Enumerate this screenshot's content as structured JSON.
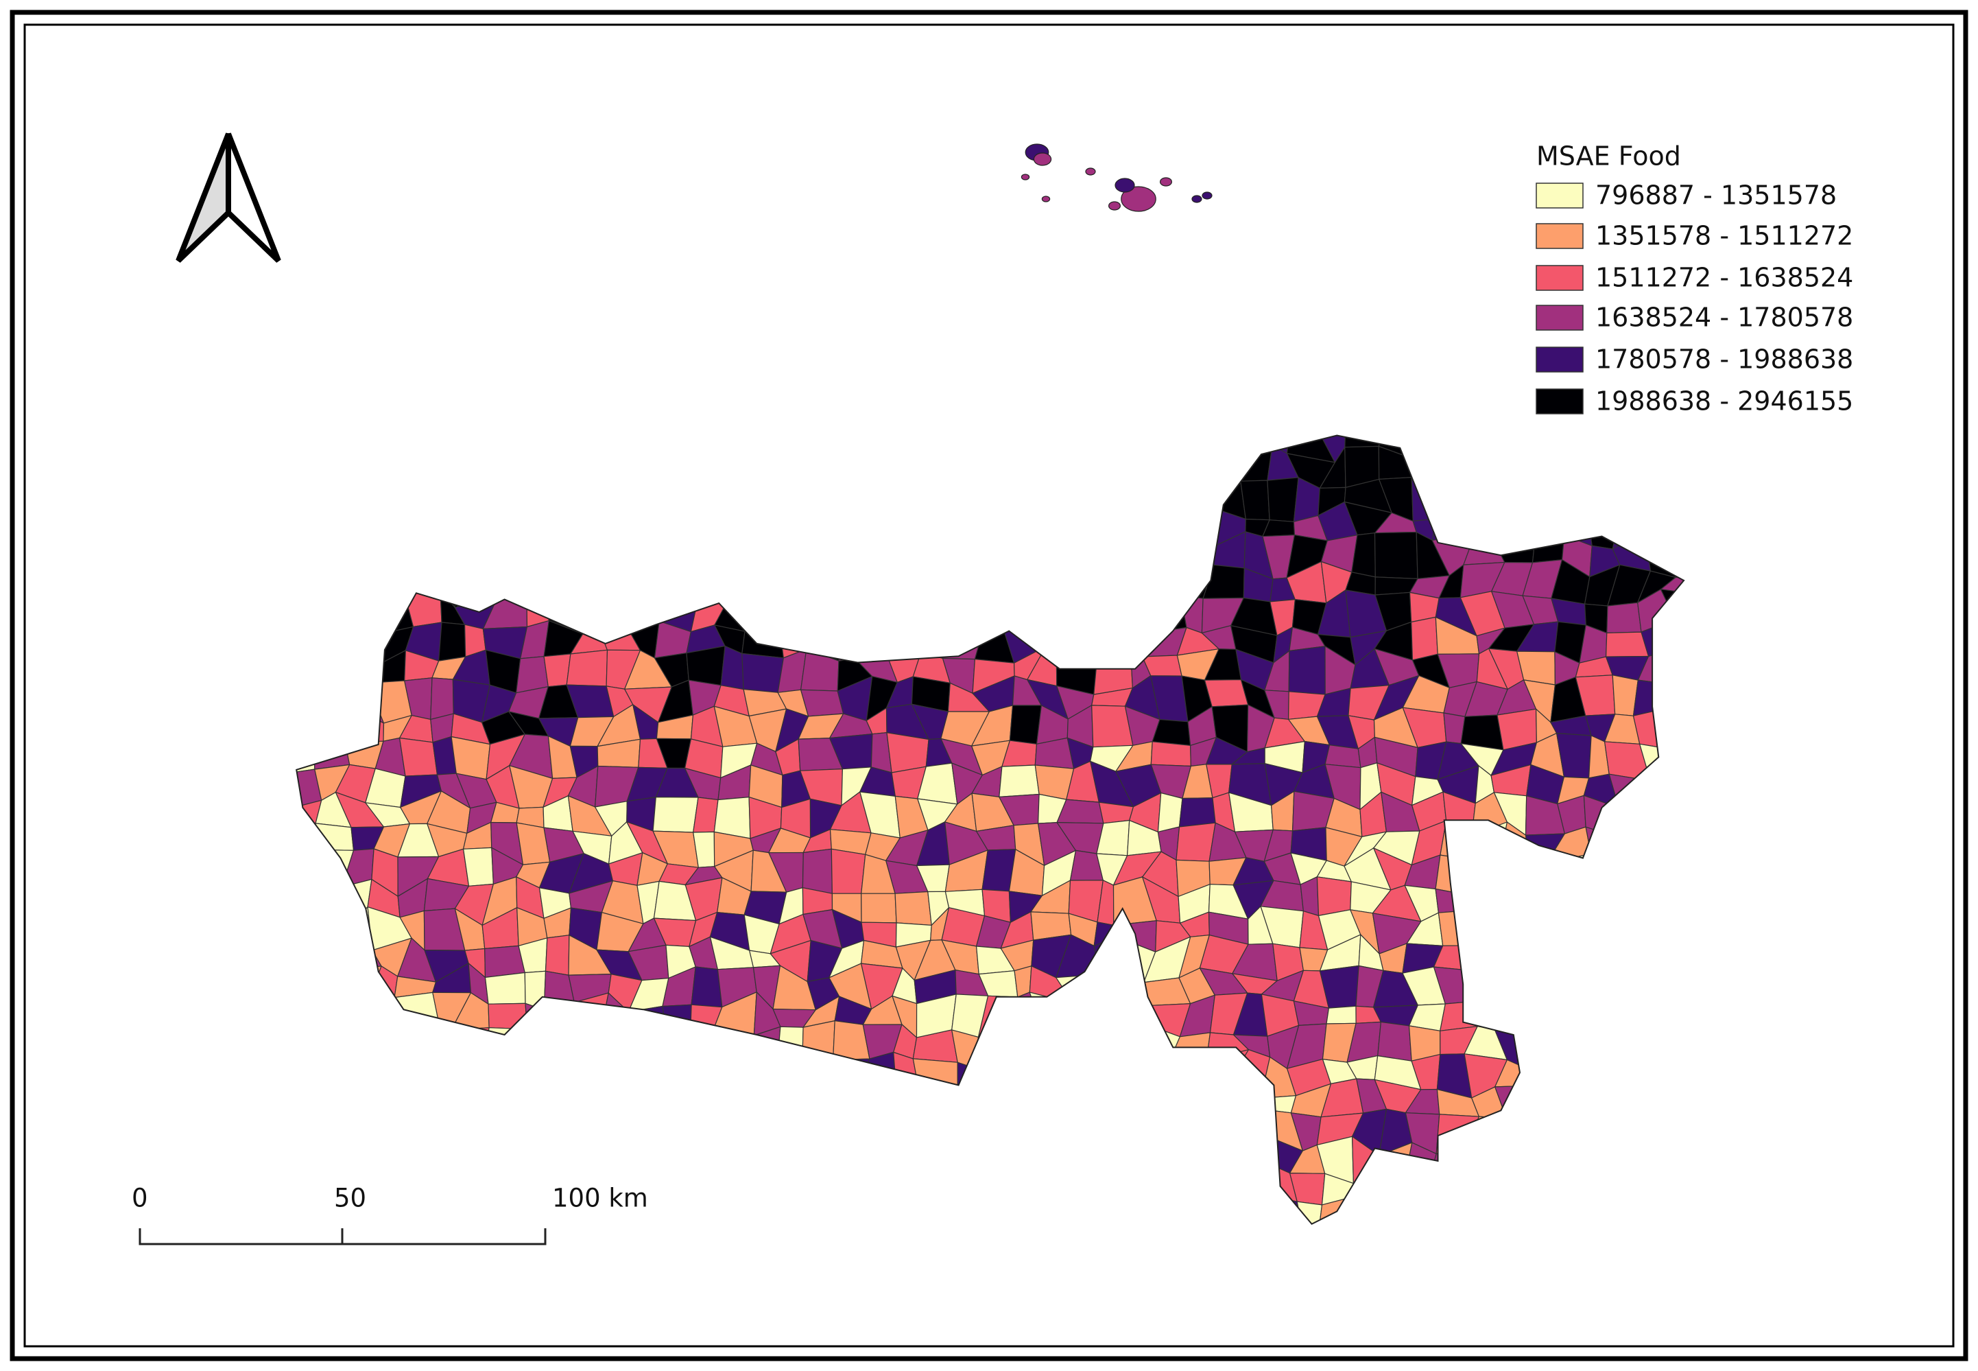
{
  "legend": {
    "title": "MSAE Food",
    "items": [
      {
        "label": "796887 - 1351578",
        "color": "#fcfdbf"
      },
      {
        "label": "1351578 - 1511272",
        "color": "#fd9f6c"
      },
      {
        "label": "1511272 - 1638524",
        "color": "#f3576b"
      },
      {
        "label": "1638524 - 1780578",
        "color": "#a1307e"
      },
      {
        "label": "1780578 - 1988638",
        "color": "#3b0f70"
      },
      {
        "label": "1988638 - 2946155",
        "color": "#000004"
      }
    ]
  },
  "scale_bar": {
    "labels": [
      "0",
      "50",
      "100 km"
    ]
  }
}
